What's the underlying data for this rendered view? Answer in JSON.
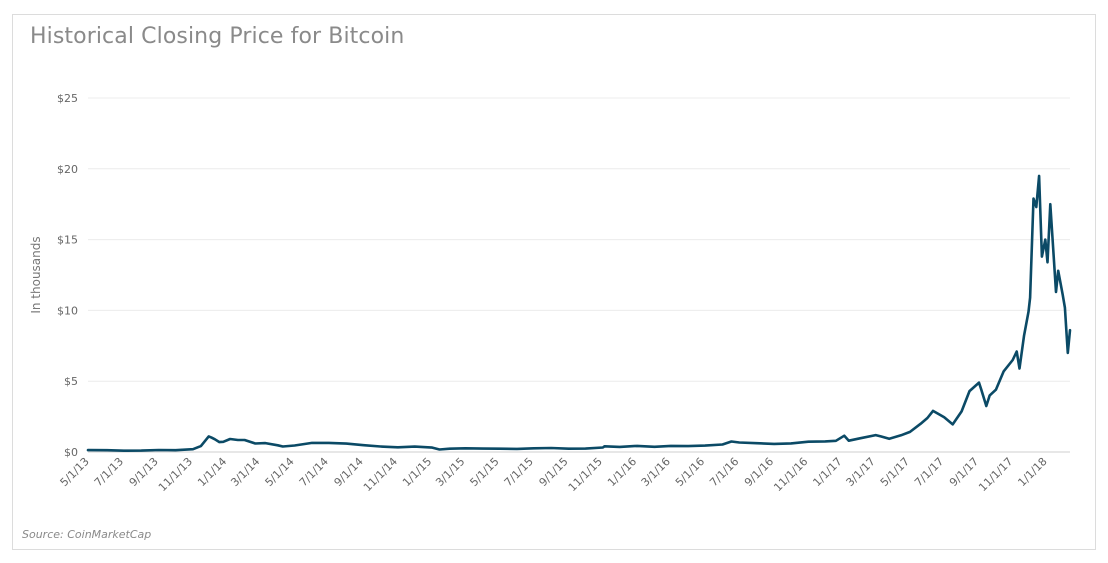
{
  "chart_data": {
    "type": "line",
    "title": "Historical Closing Price for Bitcoin",
    "ylabel": "In thousands",
    "source": "Source: CoinMarketCap",
    "ylim": [
      0,
      25
    ],
    "y_ticks": [
      {
        "value": 0,
        "label": "$0"
      },
      {
        "value": 5,
        "label": "$5"
      },
      {
        "value": 10,
        "label": "$10"
      },
      {
        "value": 15,
        "label": "$15"
      },
      {
        "value": 20,
        "label": "$20"
      },
      {
        "value": 25,
        "label": "$25"
      }
    ],
    "x_ticks": [
      "5/1/13",
      "7/1/13",
      "9/1/13",
      "11/1/13",
      "1/1/14",
      "3/1/14",
      "5/1/14",
      "7/1/14",
      "9/1/14",
      "11/1/14",
      "1/1/15",
      "3/1/15",
      "5/1/15",
      "7/1/15",
      "9/1/15",
      "11/1/15",
      "1/1/16",
      "3/1/16",
      "5/1/16",
      "7/1/16",
      "9/1/16",
      "11/1/16",
      "1/1/17",
      "3/1/17",
      "5/1/17",
      "7/1/17",
      "9/1/17",
      "11/1/17",
      "1/1/18"
    ],
    "grid": true,
    "line_color": "#0b4a66",
    "series": [
      {
        "x": [
          "2013-04-28",
          "2013-06-01",
          "2013-07-01",
          "2013-08-01",
          "2013-09-01",
          "2013-10-01",
          "2013-11-01",
          "2013-11-15",
          "2013-11-29",
          "2013-12-04",
          "2013-12-10",
          "2013-12-18",
          "2013-12-25",
          "2014-01-06",
          "2014-01-20",
          "2014-02-01",
          "2014-02-20",
          "2014-03-10",
          "2014-04-01",
          "2014-04-10",
          "2014-05-01",
          "2014-06-01",
          "2014-07-01",
          "2014-08-01",
          "2014-09-01",
          "2014-10-01",
          "2014-11-01",
          "2014-12-01",
          "2015-01-01",
          "2015-01-14",
          "2015-02-01",
          "2015-03-01",
          "2015-04-01",
          "2015-05-01",
          "2015-06-01",
          "2015-07-01",
          "2015-08-01",
          "2015-09-01",
          "2015-10-01",
          "2015-11-01",
          "2015-11-04",
          "2015-12-01",
          "2016-01-01",
          "2016-02-01",
          "2016-03-01",
          "2016-04-01",
          "2016-05-01",
          "2016-06-01",
          "2016-06-17",
          "2016-07-01",
          "2016-08-01",
          "2016-09-01",
          "2016-10-01",
          "2016-11-01",
          "2016-12-01",
          "2016-12-20",
          "2017-01-04",
          "2017-01-12",
          "2017-02-01",
          "2017-03-01",
          "2017-03-10",
          "2017-03-25",
          "2017-04-15",
          "2017-05-01",
          "2017-05-20",
          "2017-06-01",
          "2017-06-11",
          "2017-06-20",
          "2017-07-01",
          "2017-07-16",
          "2017-08-01",
          "2017-08-15",
          "2017-09-01",
          "2017-09-05",
          "2017-09-14",
          "2017-09-20",
          "2017-10-01",
          "2017-10-15",
          "2017-10-31",
          "2017-11-07",
          "2017-11-12",
          "2017-11-20",
          "2017-11-28",
          "2017-12-01",
          "2017-12-07",
          "2017-12-12",
          "2017-12-17",
          "2017-12-22",
          "2017-12-28",
          "2018-01-01",
          "2018-01-06",
          "2018-01-10",
          "2018-01-16",
          "2018-01-20",
          "2018-01-28",
          "2018-02-01",
          "2018-02-04",
          "2018-02-06",
          "2018-02-10"
        ],
        "values": [
          0.135,
          0.13,
          0.09,
          0.1,
          0.14,
          0.13,
          0.2,
          0.42,
          1.1,
          1.02,
          0.9,
          0.7,
          0.72,
          0.92,
          0.85,
          0.85,
          0.6,
          0.63,
          0.47,
          0.39,
          0.46,
          0.64,
          0.64,
          0.59,
          0.48,
          0.39,
          0.33,
          0.38,
          0.31,
          0.18,
          0.23,
          0.26,
          0.24,
          0.23,
          0.22,
          0.26,
          0.28,
          0.23,
          0.24,
          0.32,
          0.4,
          0.36,
          0.43,
          0.37,
          0.43,
          0.42,
          0.45,
          0.53,
          0.74,
          0.67,
          0.62,
          0.57,
          0.61,
          0.73,
          0.75,
          0.79,
          1.15,
          0.8,
          0.97,
          1.19,
          1.1,
          0.93,
          1.18,
          1.42,
          2.0,
          2.4,
          2.9,
          2.7,
          2.45,
          1.95,
          2.87,
          4.3,
          4.9,
          4.4,
          3.25,
          4.0,
          4.4,
          5.7,
          6.5,
          7.1,
          5.9,
          8.2,
          9.9,
          10.9,
          17.9,
          17.3,
          19.5,
          13.8,
          15.0,
          13.4,
          17.5,
          15.0,
          11.3,
          12.8,
          11.1,
          10.2,
          8.3,
          7.0,
          8.6
        ]
      }
    ]
  }
}
